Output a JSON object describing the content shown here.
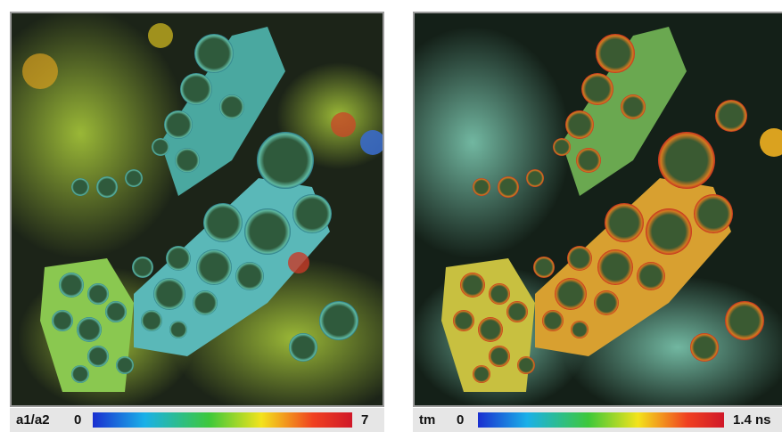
{
  "panels": [
    {
      "scale_label": "a1/a2",
      "scale_min": "0",
      "scale_max": "7"
    },
    {
      "scale_label": "tm",
      "scale_min": "0",
      "scale_max": "1.4 ns"
    }
  ]
}
